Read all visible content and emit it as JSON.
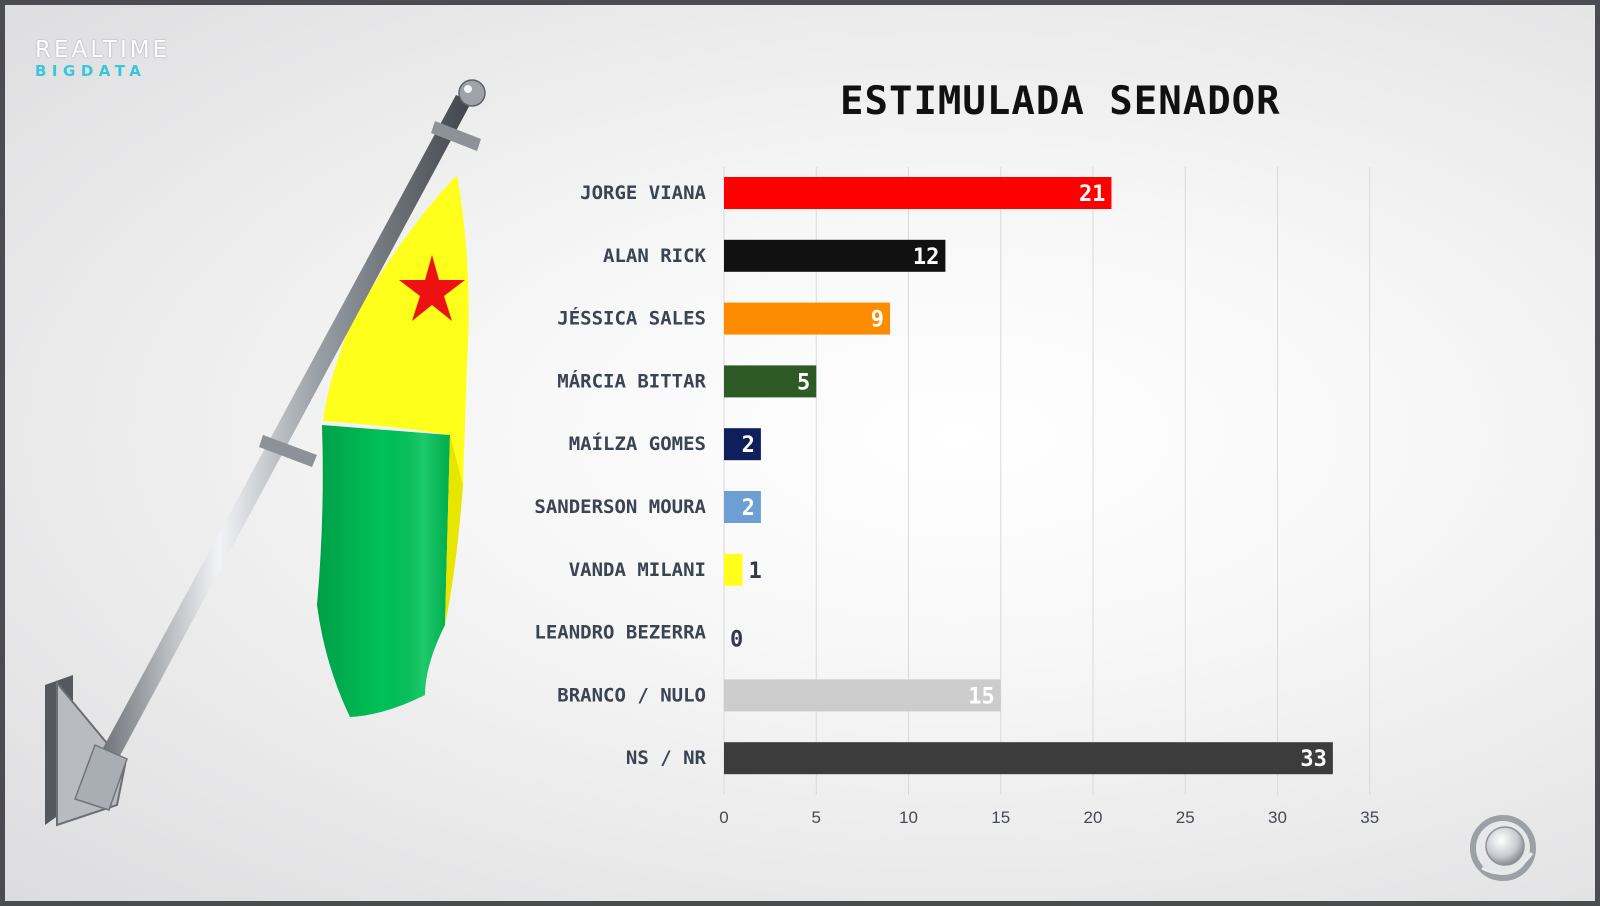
{
  "branding": {
    "logo_line1": "REALTIME",
    "logo_line2": "BIGDATA",
    "logo_line2_color": "#39c6dc"
  },
  "chart_data": {
    "type": "bar",
    "orientation": "horizontal",
    "title": "ESTIMULADA SENADOR",
    "categories": [
      "JORGE VIANA",
      "ALAN RICK",
      "JÉSSICA SALES",
      "MÁRCIA BITTAR",
      "MAÍLZA GOMES",
      "SANDERSON MOURA",
      "VANDA MILANI",
      "LEANDRO BEZERRA",
      "BRANCO / NULO",
      "NS / NR"
    ],
    "values": [
      21,
      12,
      9,
      5,
      2,
      2,
      1,
      0,
      15,
      33
    ],
    "colors": [
      "#ff0000",
      "#111111",
      "#ff8c00",
      "#2e5a25",
      "#0f1f5c",
      "#6d9fd3",
      "#ffff1a",
      "#cccccc",
      "#cccccc",
      "#3c3c3c"
    ],
    "xlim": [
      0,
      35
    ],
    "xticks": [
      0,
      5,
      10,
      15,
      20,
      25,
      30,
      35
    ],
    "xlabel": "",
    "ylabel": "",
    "grid": "vertical",
    "data_labels": true
  }
}
